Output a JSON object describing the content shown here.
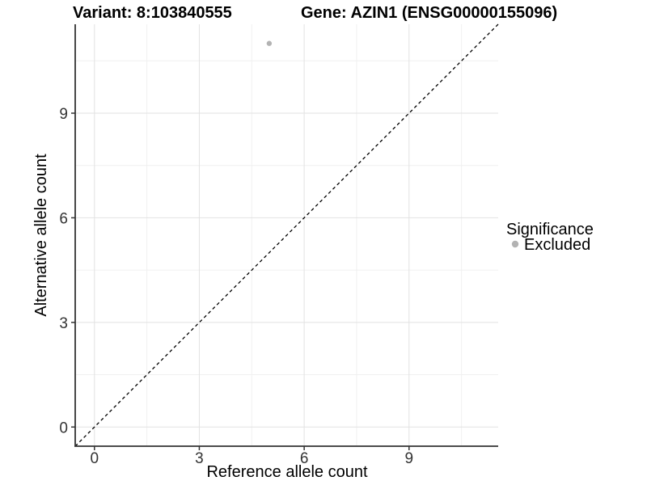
{
  "header": {
    "variant_title": "Variant: 8:103840555",
    "gene_title": "Gene: AZIN1 (ENSG00000155096)"
  },
  "chart_data": {
    "type": "scatter",
    "xlabel": "Reference allele count",
    "ylabel": "Alternative allele count",
    "xlim": [
      -0.55,
      11.55
    ],
    "ylim": [
      -0.55,
      11.55
    ],
    "x_major_ticks": [
      0,
      3,
      6,
      9
    ],
    "y_major_ticks": [
      0,
      3,
      6,
      9
    ],
    "x_minor_gridlines": [
      1.5,
      4.5,
      7.5,
      10.5
    ],
    "y_minor_gridlines": [
      1.5,
      4.5,
      7.5,
      10.5
    ],
    "grid": "major+minor",
    "series": [
      {
        "name": "Excluded",
        "color": "#b3b3b3",
        "points": [
          {
            "x": 5,
            "y": 11
          }
        ]
      }
    ],
    "reference_line": {
      "slope": 1,
      "intercept": 0,
      "linetype": "dashed",
      "color": "#000000"
    },
    "legend": {
      "position": "right",
      "title": "Significance",
      "entries": [
        {
          "label": "Excluded",
          "color": "#b3b3b3"
        }
      ]
    }
  },
  "colors": {
    "background": "#ffffff",
    "axis_line": "#333333",
    "tick_mark": "#333333",
    "grid_major": "#e2e2e2",
    "grid_minor": "#f0f0f0",
    "title_text": "#000000",
    "tick_text": "#333333"
  }
}
